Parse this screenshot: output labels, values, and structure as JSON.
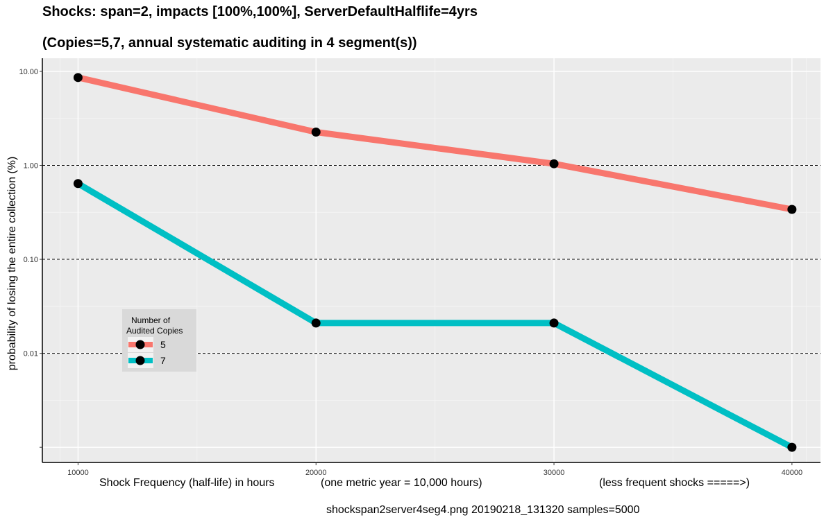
{
  "chart_data": {
    "type": "line",
    "title": "Shocks: span=2, impacts [100%,100%], ServerDefaultHalflife=4yrs",
    "subtitle": "(Copies=5,7, annual systematic auditing in 4 segment(s))",
    "ylabel": "probability of losing the entire collection (%)",
    "xlabel_parts": [
      "Shock Frequency (half-life) in hours",
      "(one metric year = 10,000 hours)",
      "(less frequent shocks =====>)"
    ],
    "footer": "shockspan2server4seg4.png   20190218_131320   samples=5000",
    "x": [
      10000,
      20000,
      30000,
      40000
    ],
    "x_tick_labels": [
      "10000",
      "20000",
      "30000",
      "40000"
    ],
    "xlim": [
      8500,
      41200
    ],
    "y_scale": "log10",
    "ylim": [
      0.00069,
      13.8
    ],
    "y_ticks": [
      0.001,
      0.01,
      0.1,
      1,
      10
    ],
    "y_tick_labels": [
      "",
      "0.01",
      "0.10",
      "1.00",
      "10.00"
    ],
    "hlines_dashed": [
      0.01,
      0.1,
      1
    ],
    "series": [
      {
        "name": "5",
        "color": "#F8766D",
        "values": [
          8.6,
          2.26,
          1.04,
          0.34
        ]
      },
      {
        "name": "7",
        "color": "#00BFC4",
        "values": [
          0.64,
          0.021,
          0.021,
          0.001
        ]
      }
    ],
    "legend": {
      "title_lines": [
        "Number of",
        "Audited Copies"
      ],
      "placement": "lower-left inside plot"
    },
    "grid": true,
    "panel_background": "#EBEBEB",
    "point_color": "#000000"
  }
}
